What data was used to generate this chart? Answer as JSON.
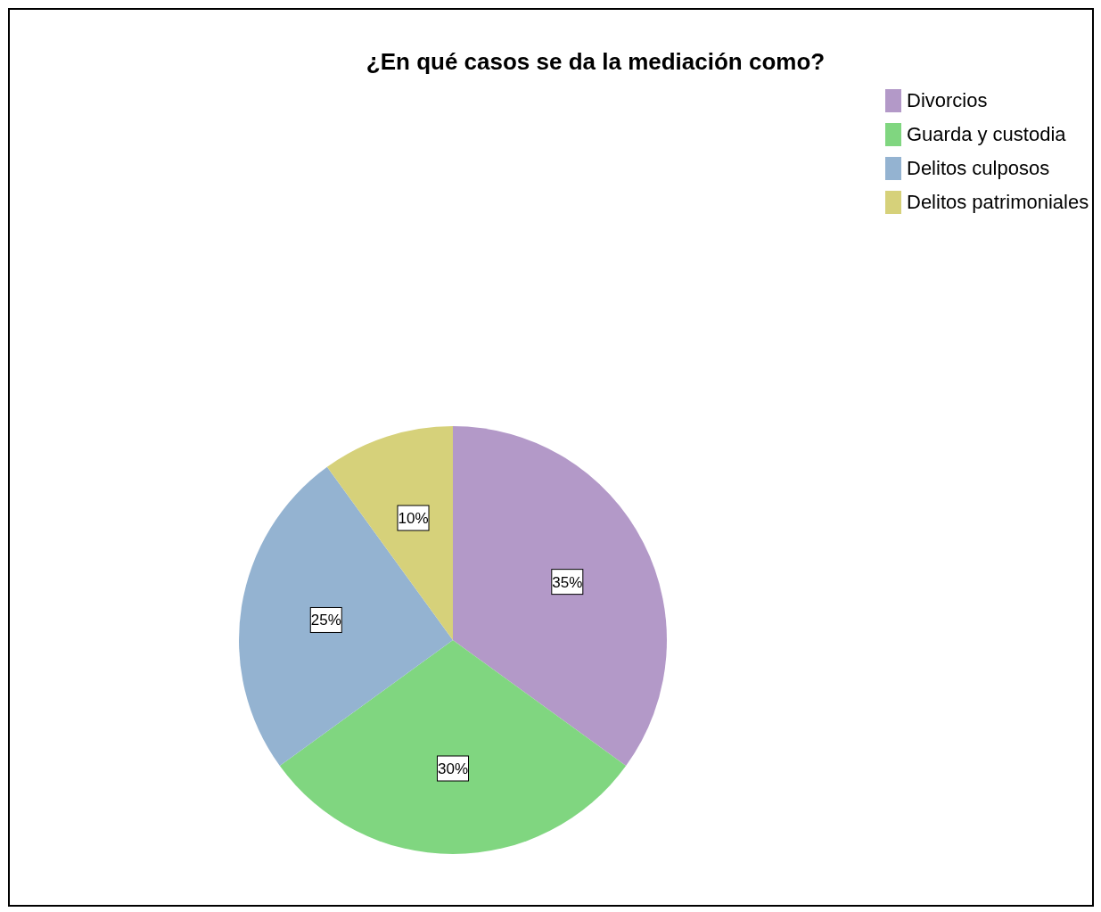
{
  "chart_data": {
    "type": "pie",
    "title": "¿En qué casos se da la mediación como?",
    "categories": [
      "Divorcios",
      "Guarda y custodia",
      "Delitos culposos",
      "Delitos patrimoniales"
    ],
    "values": [
      35,
      30,
      25,
      10
    ],
    "colors": [
      "#b399c8",
      "#80d680",
      "#94b3d1",
      "#d6d17a"
    ],
    "value_labels": [
      "35%",
      "30%",
      "25%",
      "10%"
    ],
    "legend": "top right"
  }
}
